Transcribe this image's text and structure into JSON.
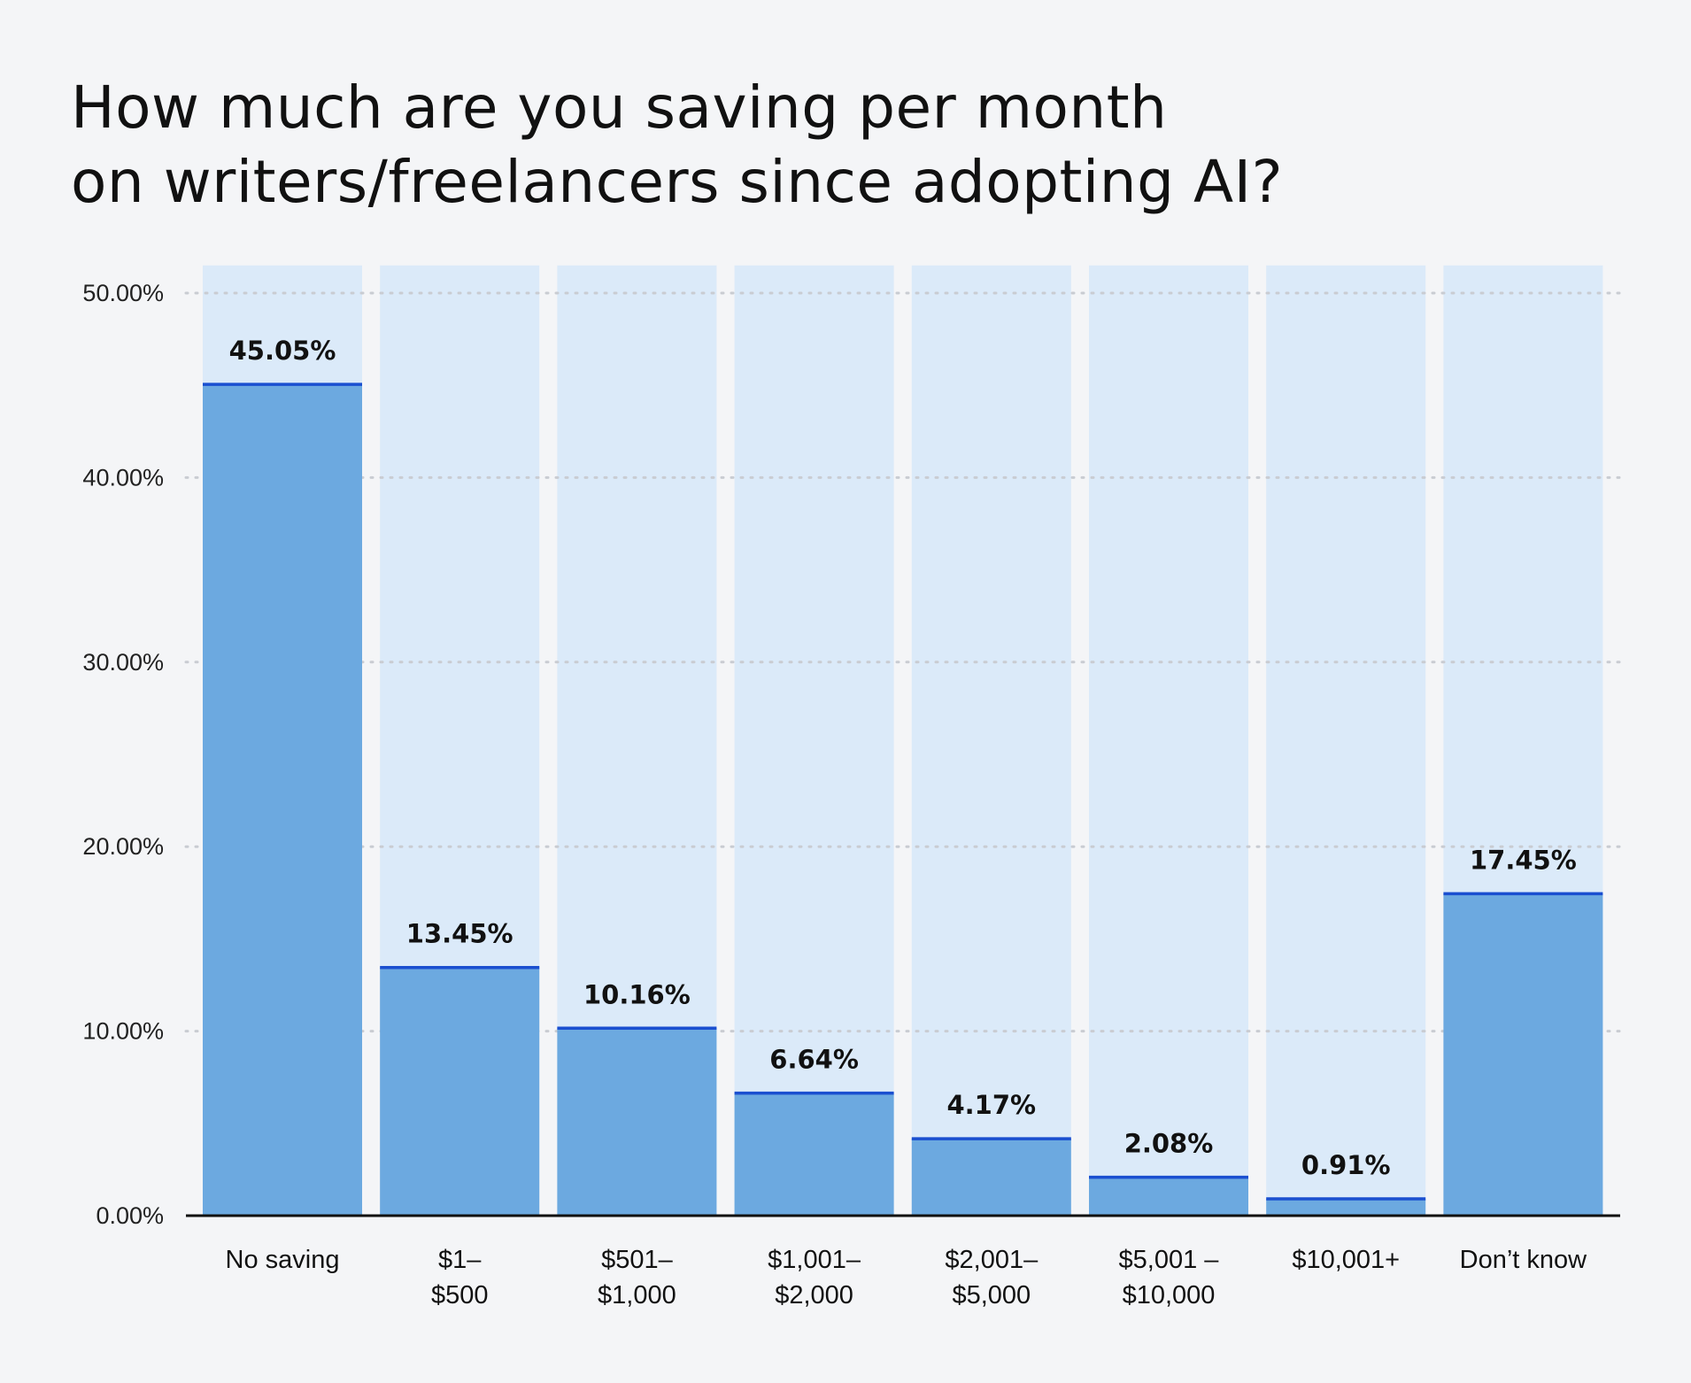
{
  "chart_data": {
    "type": "bar",
    "title_lines": [
      "How much are you saving per month",
      "on writers/freelancers since adopting AI?"
    ],
    "categories": [
      [
        "No saving"
      ],
      [
        "$1–",
        "$500"
      ],
      [
        "$501–",
        "$1,000"
      ],
      [
        "$1,001–",
        "$2,000"
      ],
      [
        "$2,001–",
        "$5,000"
      ],
      [
        "$5,001 –",
        "$10,000"
      ],
      [
        "$10,001+"
      ],
      [
        "Don’t know"
      ]
    ],
    "values": [
      45.05,
      13.45,
      10.16,
      6.64,
      4.17,
      2.08,
      0.91,
      17.45
    ],
    "data_labels": [
      "45.05%",
      "13.45%",
      "10.16%",
      "6.64%",
      "4.17%",
      "2.08%",
      "0.91%",
      "17.45%"
    ],
    "ylim": [
      0,
      50
    ],
    "background_max": 51.5,
    "yticks": [
      0,
      10,
      20,
      30,
      40,
      50
    ],
    "ytick_labels": [
      "0.00%",
      "10.00%",
      "20.00%",
      "30.00%",
      "40.00%",
      "50.00%"
    ],
    "grid": "dotted horizontal",
    "xlabel": "",
    "ylabel": "",
    "colors": {
      "background": "#f4f5f7",
      "bar_track": "#dbeaf9",
      "bar_fill": "#6ca9e0",
      "bar_top_line": "#1a4fd0",
      "grid": "#c9ccd2",
      "axis": "#111111"
    }
  }
}
